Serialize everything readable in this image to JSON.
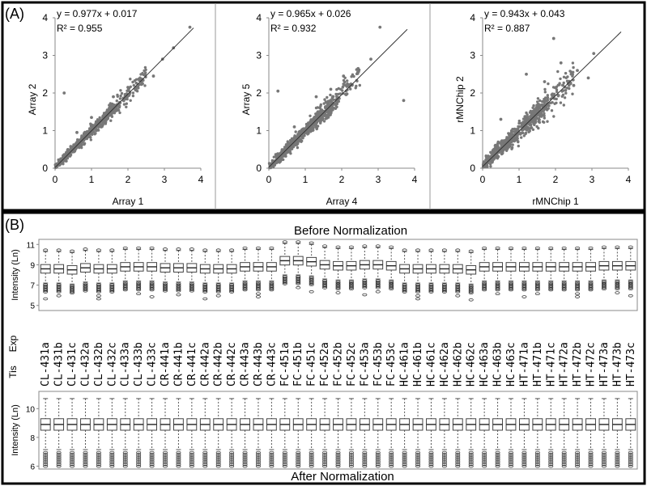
{
  "figure": {
    "panel_a_label": "(A)",
    "panel_b_label": "(B)",
    "before_title": "Before Normalization",
    "after_title": "After Normalization",
    "intensity_label": "Intensity (Ln)",
    "exp_label": "Exp",
    "tis_label": "Tis"
  },
  "chart_data": [
    {
      "type": "scatter",
      "xlabel": "Array 1",
      "ylabel": "Array 2",
      "equation": "y = 0.977x + 0.017",
      "r2": "R² = 0.955",
      "slope": 0.977,
      "intercept": 0.017,
      "xlim": [
        0,
        4
      ],
      "ylim": [
        0,
        4
      ],
      "xticks": [
        "0",
        "1",
        "2",
        "3",
        "4"
      ],
      "yticks": [
        "0",
        "1",
        "2",
        "3",
        "4"
      ],
      "outliers": [
        [
          0.25,
          2.0
        ],
        [
          2.4,
          2.25
        ],
        [
          2.7,
          2.45
        ],
        [
          2.95,
          2.9
        ],
        [
          3.7,
          3.75
        ],
        [
          3.25,
          3.2
        ],
        [
          1.0,
          1.35
        ],
        [
          1.6,
          1.9
        ],
        [
          2.0,
          2.15
        ],
        [
          0.6,
          0.95
        ]
      ]
    },
    {
      "type": "scatter",
      "xlabel": "Array 4",
      "ylabel": "Array 5",
      "equation": "y = 0.965x + 0.026",
      "r2": "R² = 0.932",
      "slope": 0.965,
      "intercept": 0.026,
      "xlim": [
        0,
        4
      ],
      "ylim": [
        0,
        4
      ],
      "xticks": [
        "0",
        "1",
        "2",
        "3",
        "4"
      ],
      "yticks": [
        "0",
        "1",
        "2",
        "3",
        "4"
      ],
      "outliers": [
        [
          0.25,
          2.05
        ],
        [
          3.7,
          1.8
        ],
        [
          3.05,
          3.75
        ],
        [
          2.45,
          2.65
        ],
        [
          2.8,
          2.9
        ],
        [
          1.3,
          1.9
        ],
        [
          1.7,
          2.1
        ],
        [
          0.7,
          1.1
        ],
        [
          2.05,
          2.45
        ]
      ]
    },
    {
      "type": "scatter",
      "xlabel": "rMNChip 1",
      "ylabel": "rMNChip 2",
      "equation": "y = 0.943x + 0.043",
      "r2": "R² = 0.887",
      "slope": 0.943,
      "intercept": 0.043,
      "xlim": [
        0,
        4
      ],
      "ylim": [
        0,
        4
      ],
      "xticks": [
        "0",
        "1",
        "2",
        "3",
        "4"
      ],
      "yticks": [
        "0",
        "1",
        "2",
        "3",
        "4"
      ],
      "outliers": [
        [
          1.95,
          3.45
        ],
        [
          2.15,
          2.8
        ],
        [
          3.05,
          3.05
        ],
        [
          2.6,
          2.6
        ],
        [
          2.5,
          2.2
        ],
        [
          1.2,
          2.5
        ],
        [
          1.7,
          2.3
        ],
        [
          0.5,
          1.3
        ],
        [
          2.9,
          2.4
        ]
      ]
    },
    {
      "type": "box",
      "title": "Before Normalization",
      "ylabel": "Intensity (Ln)",
      "ylim": [
        4.5,
        11.5
      ],
      "yticks": [
        "5",
        "7",
        "9",
        "11"
      ],
      "exp_row_label": "Exp",
      "tis_row_label": "Tis",
      "categories": [
        "CL-431a",
        "CL-431b",
        "CL-431c",
        "CL-432a",
        "CL-432b",
        "CL-432c",
        "CL-433a",
        "CL-433b",
        "CL-433c",
        "CR-441a",
        "CR-441b",
        "CR-441c",
        "CR-442a",
        "CR-442b",
        "CR-442c",
        "CR-443a",
        "CR-443b",
        "CR-443c",
        "FC-451a",
        "FC-451b",
        "FC-451c",
        "FC-452a",
        "FC-452b",
        "FC-452c",
        "FC-453a",
        "FC-453b",
        "FC-453c",
        "HC-461a",
        "HC-461b",
        "HC-461c",
        "HC-462a",
        "HC-462b",
        "HC-462c",
        "HC-463a",
        "HC-463b",
        "HC-463c",
        "HT-471a",
        "HT-471b",
        "HT-471c",
        "HT-472a",
        "HT-472b",
        "HT-472c",
        "HT-473a",
        "HT-473b",
        "HT-473c"
      ],
      "medians": [
        8.6,
        8.6,
        8.5,
        8.7,
        8.6,
        8.6,
        8.8,
        8.8,
        8.8,
        8.7,
        8.7,
        8.7,
        8.6,
        8.6,
        8.6,
        8.8,
        8.8,
        8.8,
        9.4,
        9.4,
        9.3,
        9.0,
        8.9,
        8.9,
        9.0,
        9.0,
        8.9,
        8.6,
        8.6,
        8.6,
        8.6,
        8.6,
        8.5,
        8.8,
        8.8,
        8.8,
        8.8,
        8.8,
        8.8,
        8.8,
        8.8,
        8.8,
        8.9,
        8.9,
        8.9
      ],
      "iqr_half": 0.42,
      "whisker_low": 7.0,
      "whisker_high": 10.6
    },
    {
      "type": "box",
      "title": "After Normalization",
      "ylabel": "Intensity (Ln)",
      "ylim": [
        5.8,
        11.2
      ],
      "yticks": [
        "6",
        "8",
        "10"
      ],
      "median": 8.9,
      "iqr_half": 0.4,
      "whisker_low": 7.0,
      "whisker_high": 10.8
    }
  ]
}
